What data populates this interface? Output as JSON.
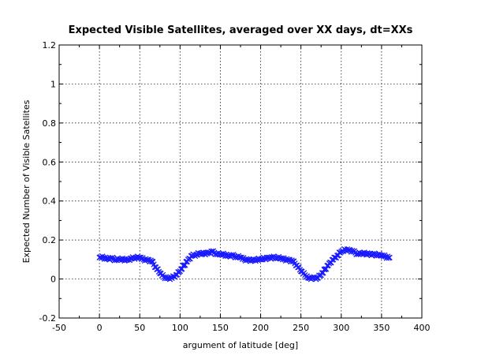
{
  "chart_data": {
    "type": "scatter",
    "title": "Expected Visible Satellites, averaged over XX days, dt=XXs",
    "xlabel": "argument of latitude [deg]",
    "ylabel": "Expected Number of Visible Satellites",
    "xlim": [
      -50,
      400
    ],
    "ylim": [
      -0.2,
      1.2
    ],
    "xticks": [
      -50,
      0,
      50,
      100,
      150,
      200,
      250,
      300,
      350,
      400
    ],
    "xtick_labels": [
      "-50",
      "0",
      "50",
      "100",
      "150",
      "200",
      "250",
      "300",
      "350",
      "400"
    ],
    "yticks": [
      -0.2,
      0,
      0.2,
      0.4,
      0.6,
      0.8,
      1,
      1.2
    ],
    "ytick_labels": [
      "-0.2",
      "0",
      "0.2",
      "0.4",
      "0.6",
      "0.8",
      "1",
      "1.2"
    ],
    "grid": true,
    "marker": "x",
    "color": "#1a1aff",
    "series": [
      {
        "x": [
          0,
          5,
          10,
          15,
          20,
          25,
          30,
          35,
          40,
          45,
          50,
          55,
          60,
          65,
          70,
          75,
          80,
          85,
          90,
          95,
          100,
          105,
          110,
          115,
          120,
          125,
          130,
          135,
          140,
          145,
          150,
          155,
          160,
          165,
          170,
          175,
          180,
          185,
          190,
          195,
          200,
          205,
          210,
          215,
          220,
          225,
          230,
          235,
          240,
          245,
          250,
          255,
          260,
          265,
          270,
          275,
          280,
          285,
          290,
          295,
          300,
          305,
          310,
          315,
          320,
          325,
          330,
          335,
          340,
          345,
          350,
          355,
          360
        ],
        "y": [
          0.11,
          0.11,
          0.105,
          0.105,
          0.1,
          0.1,
          0.1,
          0.1,
          0.105,
          0.11,
          0.11,
          0.1,
          0.1,
          0.09,
          0.06,
          0.03,
          0.01,
          0.005,
          0.005,
          0.02,
          0.04,
          0.07,
          0.1,
          0.12,
          0.125,
          0.13,
          0.13,
          0.135,
          0.14,
          0.13,
          0.125,
          0.125,
          0.12,
          0.12,
          0.115,
          0.11,
          0.1,
          0.1,
          0.095,
          0.1,
          0.1,
          0.105,
          0.11,
          0.11,
          0.11,
          0.105,
          0.1,
          0.1,
          0.09,
          0.07,
          0.04,
          0.02,
          0.005,
          0.005,
          0.005,
          0.02,
          0.05,
          0.08,
          0.1,
          0.12,
          0.14,
          0.15,
          0.15,
          0.14,
          0.13,
          0.13,
          0.13,
          0.13,
          0.125,
          0.125,
          0.12,
          0.115,
          0.11
        ]
      }
    ]
  }
}
